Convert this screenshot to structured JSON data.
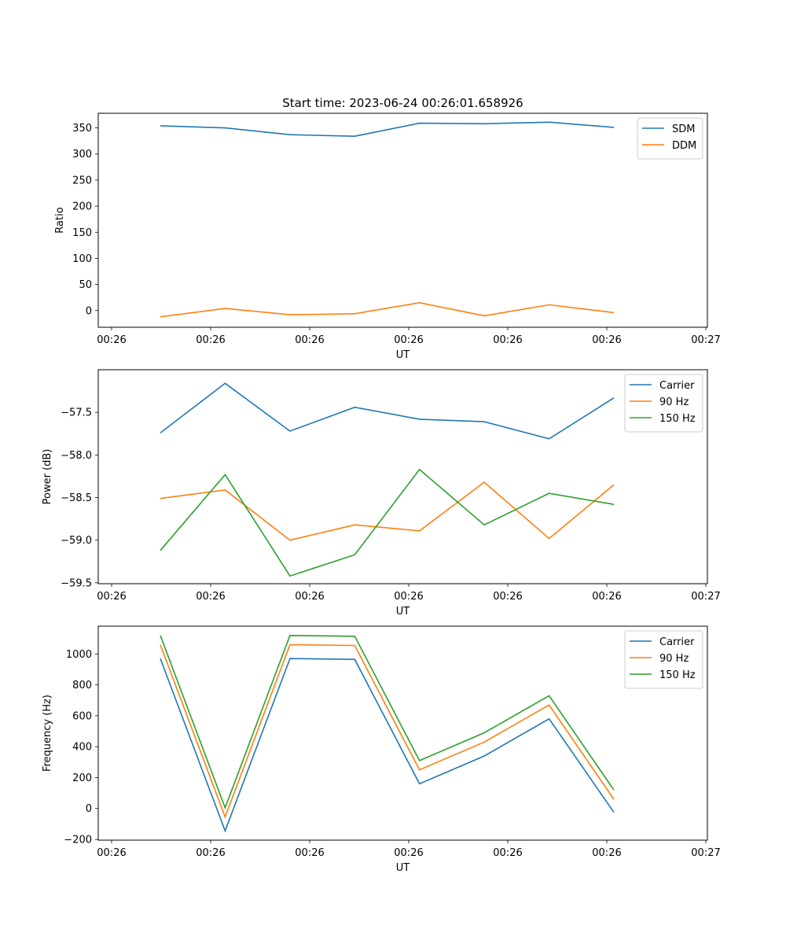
{
  "chart_data": [
    {
      "type": "line",
      "title": "Start time: 2023-06-24 00:26:01.658926",
      "xlabel": "UT",
      "ylabel": "Ratio",
      "x": [
        1,
        2,
        3,
        4,
        5,
        6,
        7,
        8
      ],
      "x_tick_labels": [
        "00:26",
        "00:26",
        "00:26",
        "00:26",
        "00:26",
        "00:26",
        "00:26"
      ],
      "x_tick_last": "00:27",
      "yticks": [
        0,
        50,
        100,
        150,
        200,
        250,
        300,
        350
      ],
      "ylim": [
        -32,
        378
      ],
      "series": [
        {
          "name": "SDM",
          "color": "#1f77b4",
          "values": [
            354,
            350,
            337,
            334,
            359,
            358,
            361,
            351
          ]
        },
        {
          "name": "DDM",
          "color": "#ff7f0e",
          "values": [
            -12,
            4,
            -8,
            -6,
            15,
            -10,
            11,
            -4
          ]
        }
      ],
      "legend": "top-right",
      "grid": false
    },
    {
      "type": "line",
      "xlabel": "UT",
      "ylabel": "Power (dB)",
      "x": [
        1,
        2,
        3,
        4,
        5,
        6,
        7,
        8
      ],
      "x_tick_labels": [
        "00:26",
        "00:26",
        "00:26",
        "00:26",
        "00:26",
        "00:26",
        "00:26"
      ],
      "x_tick_last": "00:27",
      "yticks": [
        -59.5,
        -59.0,
        -58.5,
        -58.0,
        -57.5
      ],
      "ytick_labels": [
        "−59.5",
        "−59.0",
        "−58.5",
        "−58.0",
        "−57.5"
      ],
      "ylim": [
        -59.51,
        -57.0
      ],
      "series": [
        {
          "name": "Carrier",
          "color": "#1f77b4",
          "values": [
            -57.74,
            -57.16,
            -57.72,
            -57.44,
            -57.58,
            -57.61,
            -57.81,
            -57.33
          ]
        },
        {
          "name": "90 Hz",
          "color": "#ff7f0e",
          "values": [
            -58.51,
            -58.41,
            -59.0,
            -58.82,
            -58.89,
            -58.32,
            -58.98,
            -58.35
          ]
        },
        {
          "name": "150 Hz",
          "color": "#2ca02c",
          "values": [
            -59.12,
            -58.23,
            -59.42,
            -59.17,
            -58.17,
            -58.82,
            -58.45,
            -58.58
          ]
        }
      ],
      "legend": "top-right",
      "grid": false
    },
    {
      "type": "line",
      "xlabel": "UT",
      "ylabel": "Frequency (Hz)",
      "x": [
        1,
        2,
        3,
        4,
        5,
        6,
        7,
        8
      ],
      "x_tick_labels": [
        "00:26",
        "00:26",
        "00:26",
        "00:26",
        "00:26",
        "00:26",
        "00:26"
      ],
      "x_tick_last": "00:27",
      "yticks": [
        -200,
        0,
        200,
        400,
        600,
        800,
        1000
      ],
      "ytick_labels": [
        "−200",
        "0",
        "200",
        "400",
        "600",
        "800",
        "1000"
      ],
      "ylim": [
        -205,
        1180
      ],
      "series": [
        {
          "name": "Carrier",
          "color": "#1f77b4",
          "values": [
            970,
            -145,
            970,
            965,
            160,
            340,
            580,
            -25
          ]
        },
        {
          "name": "90 Hz",
          "color": "#ff7f0e",
          "values": [
            1060,
            -55,
            1060,
            1055,
            250,
            430,
            670,
            60
          ]
        },
        {
          "name": "150 Hz",
          "color": "#2ca02c",
          "values": [
            1120,
            5,
            1120,
            1115,
            310,
            490,
            730,
            120
          ]
        }
      ],
      "legend": "top-right",
      "grid": false
    }
  ]
}
